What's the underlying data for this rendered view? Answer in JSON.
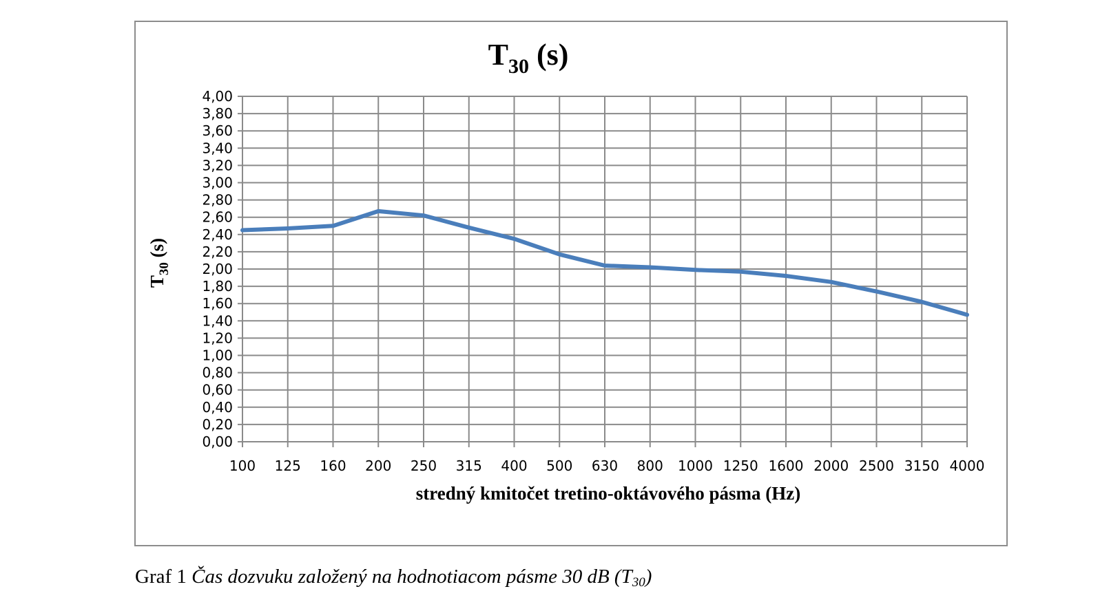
{
  "chart_data": {
    "type": "line",
    "title": {
      "main": "T",
      "sub": "30",
      "rest": " (s)"
    },
    "ylabel": {
      "main": "T",
      "sub": "30",
      "rest": " (s)"
    },
    "xlabel": "stredný kmitočet tretino-oktávového pásma (Hz)",
    "categories": [
      "100",
      "125",
      "160",
      "200",
      "250",
      "315",
      "400",
      "500",
      "630",
      "800",
      "1000",
      "1250",
      "1600",
      "2000",
      "2500",
      "3150",
      "4000"
    ],
    "y_ticks": [
      "0,00",
      "0,20",
      "0,40",
      "0,60",
      "0,80",
      "1,00",
      "1,20",
      "1,40",
      "1,60",
      "1,80",
      "2,00",
      "2,20",
      "2,40",
      "2,60",
      "2,80",
      "3,00",
      "3,20",
      "3,40",
      "3,60",
      "3,80",
      "4,00"
    ],
    "ylim": [
      0,
      4
    ],
    "grid": true,
    "legend": "none",
    "series": [
      {
        "color": "#4a7ebb",
        "values": [
          2.45,
          2.47,
          2.5,
          2.67,
          2.62,
          2.48,
          2.35,
          2.17,
          2.04,
          2.02,
          1.99,
          1.97,
          1.92,
          1.85,
          1.74,
          1.62,
          1.47
        ]
      }
    ]
  },
  "caption": {
    "prefix": "Graf 1",
    "text": "Čas dozvuku založený na hodnotiacom pásme 30 dB (T",
    "sub": "30",
    "suffix": ")"
  }
}
